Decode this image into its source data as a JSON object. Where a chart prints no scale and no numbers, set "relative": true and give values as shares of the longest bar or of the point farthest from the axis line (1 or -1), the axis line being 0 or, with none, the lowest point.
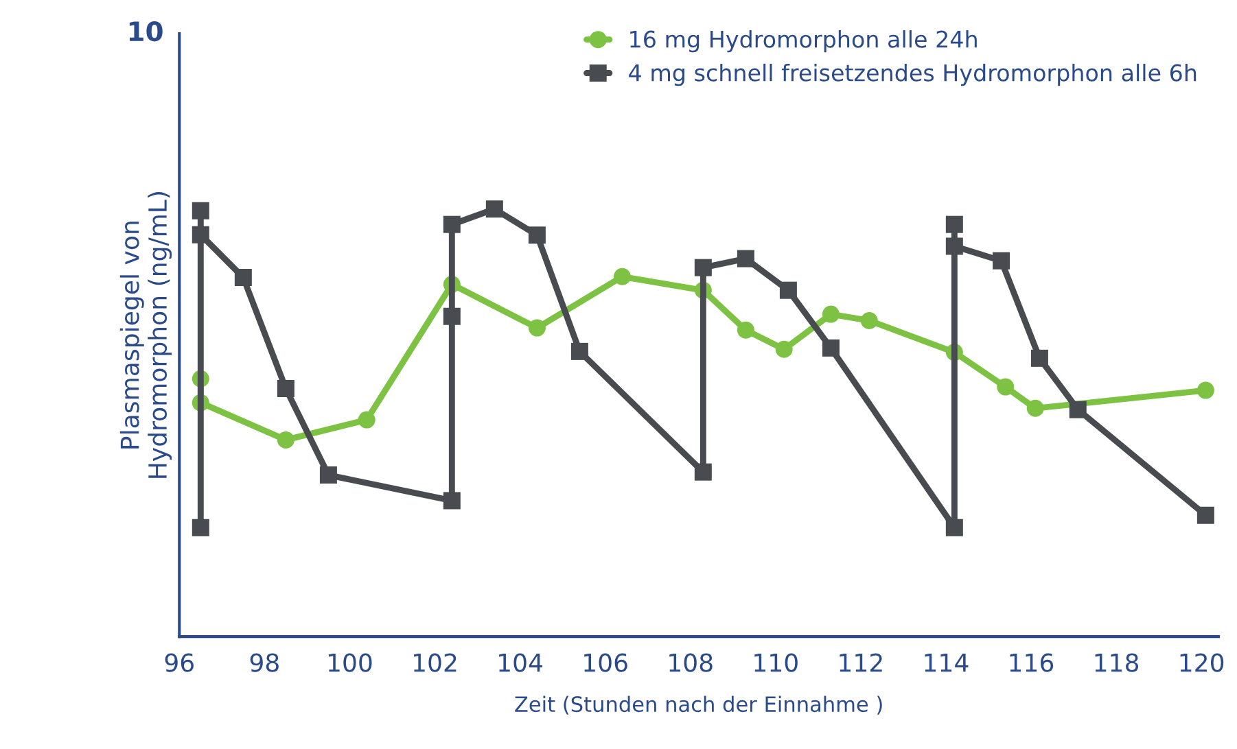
{
  "chart_data": {
    "type": "line",
    "relative": true,
    "xlabel": "Zeit (Stunden nach der Einnahme )",
    "ylabel": "Plasmaspiegel von\nHydromorphon (ng/mL)",
    "xlim": [
      96,
      120.4
    ],
    "xticks": [
      96,
      98,
      100,
      102,
      104,
      106,
      108,
      110,
      112,
      114,
      116,
      118,
      120
    ],
    "annotations": [
      "10"
    ],
    "legend": "top right",
    "grid": false,
    "line_style": "solid",
    "series": [
      {
        "name": "16 mg Hydromorphon alle 24h",
        "color": "#7dc242",
        "marker": "circle",
        "x": [
          96.5,
          96.5,
          98.5,
          100.4,
          102.4,
          104.4,
          106.4,
          108.3,
          109.3,
          110.2,
          111.3,
          112.2,
          114.2,
          115.4,
          116.1,
          120.1
        ],
        "values": [
          0.603,
          0.547,
          0.46,
          0.507,
          0.824,
          0.722,
          0.842,
          0.81,
          0.717,
          0.672,
          0.754,
          0.739,
          0.665,
          0.584,
          0.534,
          0.576
        ]
      },
      {
        "name": "4 mg schnell freisetzendes Hydromorphon alle 6h",
        "color": "#484c50",
        "marker": "square",
        "x": [
          96.5,
          96.5,
          96.5,
          97.5,
          98.5,
          99.5,
          102.4,
          102.4,
          102.4,
          103.4,
          104.4,
          105.4,
          108.3,
          108.3,
          109.3,
          110.3,
          111.3,
          114.2,
          114.2,
          114.2,
          115.3,
          116.2,
          117.1,
          120.1
        ],
        "values": [
          0.255,
          0.996,
          0.94,
          0.84,
          0.58,
          0.378,
          0.318,
          0.749,
          0.964,
          1,
          0.939,
          0.667,
          0.385,
          0.863,
          0.884,
          0.81,
          0.675,
          0.255,
          0.964,
          0.913,
          0.879,
          0.651,
          0.531,
          0.284
        ]
      }
    ]
  }
}
